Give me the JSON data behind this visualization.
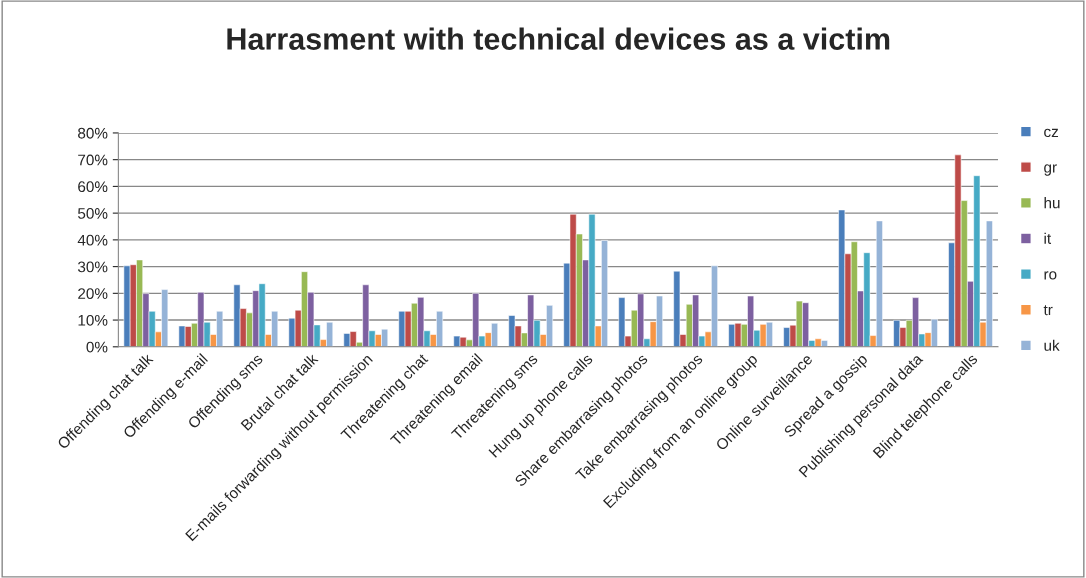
{
  "chart_data": {
    "type": "bar",
    "title": "Harrasment with technical devices as a victim",
    "categories": [
      "Offending chat talk",
      "Offending e-mail",
      "Offending sms",
      "Brutal chat talk",
      "E-mails forwarding without permission",
      "Threatening chat",
      "Threatening email",
      "Threatening sms",
      "Hung up phone calls",
      "Share embarrasing photos",
      "Take embarrasing photos",
      "Excluding from an online group",
      "Online surveillance",
      "Spread a gossip",
      "Publishing personal data",
      "Blind telephone calls"
    ],
    "series": [
      {
        "name": "cz",
        "color": "#4a7ebb",
        "values": [
          30.3,
          7.8,
          23.2,
          10.7,
          5.0,
          13.3,
          4.0,
          11.7,
          31.3,
          18.4,
          28.3,
          8.4,
          7.2,
          51.2,
          9.9,
          38.9
        ]
      },
      {
        "name": "gr",
        "color": "#be4b48",
        "values": [
          30.7,
          7.6,
          14.3,
          13.7,
          5.7,
          13.3,
          3.6,
          7.8,
          49.6,
          4.0,
          4.6,
          8.8,
          8.1,
          34.8,
          7.2,
          71.8
        ]
      },
      {
        "name": "hu",
        "color": "#98b954",
        "values": [
          32.5,
          8.8,
          12.7,
          28.1,
          1.7,
          16.3,
          2.6,
          5.2,
          42.2,
          13.7,
          15.9,
          8.4,
          17.1,
          39.3,
          9.9,
          54.7
        ]
      },
      {
        "name": "it",
        "color": "#7d60a0",
        "values": [
          19.9,
          20.4,
          21.0,
          20.4,
          23.2,
          18.5,
          20.0,
          19.4,
          32.5,
          19.8,
          19.4,
          19.0,
          16.5,
          20.9,
          18.4,
          24.5
        ]
      },
      {
        "name": "ro",
        "color": "#46aac5",
        "values": [
          13.3,
          9.2,
          23.6,
          8.2,
          6.0,
          6.0,
          4.0,
          9.9,
          49.6,
          3.0,
          4.0,
          6.2,
          2.4,
          35.2,
          4.8,
          64.0
        ]
      },
      {
        "name": "tr",
        "color": "#f79646",
        "values": [
          5.6,
          4.6,
          4.6,
          2.7,
          4.6,
          4.6,
          5.3,
          4.6,
          7.8,
          9.4,
          5.6,
          8.4,
          3.0,
          4.2,
          5.3,
          9.2
        ]
      },
      {
        "name": "uk",
        "color": "#95b3d7",
        "values": [
          21.4,
          13.3,
          13.3,
          9.2,
          6.6,
          13.3,
          8.8,
          15.5,
          39.8,
          19.0,
          30.3,
          9.2,
          2.4,
          47.1,
          10.3,
          47.1
        ]
      }
    ],
    "ylim": [
      0,
      80
    ],
    "yticks": [
      {
        "value": 0,
        "label": "0%"
      },
      {
        "value": 10,
        "label": "10%"
      },
      {
        "value": 20,
        "label": "20%"
      },
      {
        "value": 30,
        "label": "30%"
      },
      {
        "value": 40,
        "label": "40%"
      },
      {
        "value": 50,
        "label": "50%"
      },
      {
        "value": 60,
        "label": "60%"
      },
      {
        "value": 70,
        "label": "70%"
      },
      {
        "value": 80,
        "label": "80%"
      }
    ],
    "grid": "y",
    "legend": "right"
  }
}
